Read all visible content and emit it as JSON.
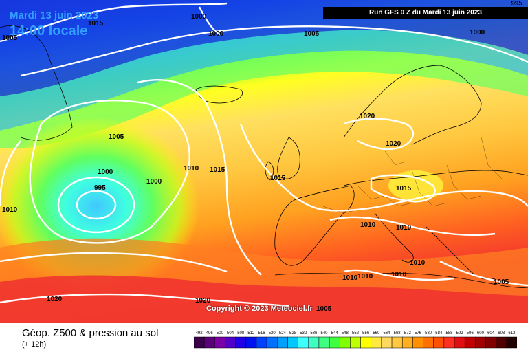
{
  "header": {
    "date": "Mardi 13 juin 2023",
    "time": "14:00 locale",
    "run": "Run GFS 0 Z du Mardi 13 juin 2023",
    "corner_value": "995"
  },
  "copyright": "Copyright © 2023 Meteociel.fr",
  "footer": {
    "title": "Géop. Z500 & pression au sol",
    "subtitle": "(+ 12h)"
  },
  "legend": {
    "values": [
      "492",
      "496",
      "500",
      "504",
      "508",
      "512",
      "516",
      "520",
      "524",
      "528",
      "532",
      "536",
      "540",
      "544",
      "548",
      "552",
      "556",
      "560",
      "564",
      "568",
      "572",
      "576",
      "580",
      "584",
      "588",
      "592",
      "596",
      "600",
      "604",
      "608",
      "612"
    ],
    "colors": [
      "#3a004a",
      "#5a007a",
      "#7a00a5",
      "#5200c8",
      "#2200e6",
      "#0010f0",
      "#0040ff",
      "#0070ff",
      "#00a0ff",
      "#00c8ff",
      "#40ffff",
      "#40ffc0",
      "#40ff80",
      "#40ff40",
      "#80ff00",
      "#c0ff00",
      "#ffff00",
      "#ffe840",
      "#ffd860",
      "#ffc840",
      "#ffb020",
      "#ff9000",
      "#ff7000",
      "#ff5000",
      "#ff3020",
      "#e01010",
      "#c00000",
      "#a00000",
      "#800000",
      "#500000",
      "#200000"
    ]
  },
  "isobars": [
    {
      "value": "1000"
    },
    {
      "value": "1015"
    },
    {
      "value": "1000"
    },
    {
      "value": "1005"
    },
    {
      "value": "1000"
    },
    {
      "value": "1005"
    },
    {
      "value": "1000"
    },
    {
      "value": "1010"
    },
    {
      "value": "1015"
    },
    {
      "value": "1000"
    },
    {
      "value": "995"
    },
    {
      "value": "1010"
    },
    {
      "value": "1015"
    },
    {
      "value": "1020"
    },
    {
      "value": "1020"
    },
    {
      "value": "1015"
    },
    {
      "value": "1010"
    },
    {
      "value": "1010"
    },
    {
      "value": "1010"
    },
    {
      "value": "1010"
    },
    {
      "value": "1010"
    },
    {
      "value": "1005"
    },
    {
      "value": "1020"
    },
    {
      "value": "1020"
    },
    {
      "value": "1005"
    },
    {
      "value": "1010"
    },
    {
      "value": "1005"
    }
  ]
}
